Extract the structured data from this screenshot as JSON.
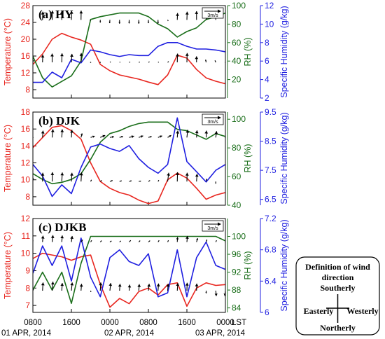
{
  "chart_data": [
    {
      "type": "line",
      "panel_label": "(a) HY",
      "left_axis": {
        "label": "Temperature (°C)",
        "ylim": [
          6,
          28
        ],
        "ticks": [
          8,
          12,
          16,
          20,
          24,
          28
        ],
        "color": "#e8261f"
      },
      "mid_axis": {
        "label": "RH (%)",
        "ylim": [
          0,
          100
        ],
        "ticks": [
          20,
          40,
          60,
          80,
          100
        ],
        "color": "#1a6e1a"
      },
      "right_axis": {
        "label": "Specific Humidity (g/kg)",
        "ylim": [
          2,
          12
        ],
        "ticks": [
          2,
          4,
          6,
          8,
          10,
          12
        ],
        "color": "#1f1fe0"
      },
      "wind_key_label": "3m/s",
      "series": [
        {
          "axis": "left",
          "color": "#e8261f",
          "x": [
            0,
            2,
            4,
            6,
            8,
            10,
            12,
            14,
            16,
            18,
            20,
            22,
            24,
            26,
            28,
            30,
            32,
            34,
            36,
            38,
            40
          ],
          "values": [
            14,
            16.5,
            20,
            21.4,
            20.5,
            19.8,
            18.8,
            14,
            12.5,
            11.5,
            11,
            10.5,
            9.8,
            9.2,
            11.5,
            16.2,
            15.5,
            12.8,
            10.8,
            10,
            9.4
          ]
        },
        {
          "axis": "mid",
          "color": "#1a6e1a",
          "x": [
            0,
            2,
            4,
            6,
            8,
            10,
            12,
            14,
            16,
            18,
            20,
            22,
            24,
            26,
            28,
            30,
            32,
            34,
            36,
            38,
            40
          ],
          "values": [
            45,
            22,
            12,
            18,
            24,
            40,
            85,
            88,
            90,
            92,
            92,
            92,
            88,
            80,
            75,
            66,
            72,
            76,
            85,
            88,
            92
          ]
        },
        {
          "axis": "right",
          "color": "#1f1fe0",
          "x": [
            0,
            2,
            4,
            6,
            8,
            10,
            12,
            14,
            16,
            18,
            20,
            22,
            24,
            26,
            28,
            30,
            32,
            34,
            36,
            38,
            40
          ],
          "values": [
            3.7,
            3.7,
            4.8,
            4.2,
            6.2,
            5.8,
            7.2,
            7,
            6.7,
            6.5,
            6.7,
            6.6,
            6.6,
            7.6,
            8,
            8,
            7.6,
            7.3,
            7.3,
            7.2,
            7
          ]
        }
      ],
      "wind_rows": [
        {
          "level": 24.6,
          "u": [
            0,
            0.1,
            0.1,
            0,
            0.1,
            0.05,
            -0.2,
            0,
            -0.1,
            0,
            0,
            0,
            0,
            0,
            0.2,
            0.1,
            0.1,
            0,
            0.1,
            0,
            0.1
          ],
          "v": [
            0,
            3,
            3.4,
            3.2,
            3.3,
            3.4,
            -0.3,
            -1,
            -1.2,
            -1.4,
            -1.3,
            -1.4,
            -1.2,
            -1.3,
            -0.4,
            2.5,
            3,
            3.2,
            3.1,
            2.8,
            -0.5
          ]
        },
        {
          "level": 14.5,
          "u": [
            0.2,
            0.1,
            0,
            0.1,
            0.2,
            0.1,
            0.1,
            0.2,
            0.3,
            0.3,
            0.4,
            0.4,
            0.4,
            0.3,
            0.4,
            0.1,
            0.1,
            0,
            -0.2,
            -0.3,
            0
          ],
          "v": [
            0.8,
            2.8,
            3.2,
            3.3,
            3.1,
            3.4,
            -0.2,
            -0.1,
            0.2,
            0.1,
            0.1,
            0.1,
            0.2,
            0.1,
            0.3,
            3.2,
            3.4,
            2.2,
            1,
            0.7,
            0
          ]
        }
      ]
    },
    {
      "type": "line",
      "panel_label": "(b) DJK",
      "left_axis": {
        "label": "Temperature (°C)",
        "ylim": [
          7,
          18
        ],
        "ticks": [
          8,
          10,
          12,
          14,
          16,
          18
        ],
        "color": "#e8261f"
      },
      "mid_axis": {
        "label": "RH (%)",
        "ylim": [
          40,
          105
        ],
        "ticks": [
          40,
          60,
          80,
          100
        ],
        "color": "#1a6e1a"
      },
      "right_axis": {
        "label": "Specific Humidity (g/kg)",
        "ylim": [
          6.3,
          9.5
        ],
        "ticks": [
          6.5,
          7.5,
          8.5,
          9.5
        ],
        "color": "#1f1fe0"
      },
      "wind_key_label": "3m/s",
      "series": [
        {
          "axis": "left",
          "color": "#e8261f",
          "x": [
            0,
            2,
            4,
            6,
            8,
            10,
            12,
            14,
            16,
            18,
            20,
            22,
            24,
            26,
            28,
            30,
            32,
            34,
            36,
            38,
            40
          ],
          "values": [
            13.8,
            15,
            16.2,
            16.4,
            15.8,
            14.8,
            12,
            9.8,
            9,
            8.5,
            8.2,
            7.6,
            7.2,
            7.5,
            10,
            10.8,
            10.2,
            9,
            7.7,
            8.2,
            8.5
          ]
        },
        {
          "axis": "mid",
          "color": "#1a6e1a",
          "x": [
            0,
            2,
            4,
            6,
            8,
            10,
            12,
            14,
            16,
            18,
            20,
            22,
            24,
            26,
            28,
            30,
            32,
            34,
            36,
            38,
            40
          ],
          "values": [
            62,
            58,
            55,
            56,
            58,
            62,
            72,
            84,
            90,
            92,
            95,
            97,
            98,
            98,
            98,
            93,
            92,
            89,
            86,
            90,
            88
          ]
        },
        {
          "axis": "right",
          "color": "#1f1fe0",
          "x": [
            0,
            2,
            4,
            6,
            8,
            10,
            12,
            14,
            16,
            18,
            20,
            22,
            24,
            26,
            28,
            30,
            32,
            34,
            36,
            38,
            40
          ],
          "values": [
            7.7,
            7.3,
            6.6,
            7,
            6.7,
            7.6,
            8.3,
            8.4,
            8.25,
            8.15,
            8.35,
            7.9,
            7.6,
            7.4,
            7.7,
            9.3,
            7.8,
            7.45,
            7.1,
            7.5,
            7.7
          ]
        }
      ],
      "wind_rows": [
        {
          "level": 15,
          "u": [
            0,
            0.2,
            0.3,
            0.2,
            0.2,
            0.4,
            1.5,
            1.8,
            1.5,
            1.3,
            1.8,
            1.6,
            1.2,
            1.5,
            1.3,
            0.2,
            0.3,
            0.2,
            0.1,
            0.3,
            0.1
          ],
          "v": [
            0,
            2.5,
            3,
            3,
            2.8,
            1.5,
            0.5,
            0.8,
            0.3,
            0.4,
            0.5,
            0.6,
            0.4,
            0.6,
            0.8,
            2.5,
            2.8,
            2.6,
            2.5,
            2.3,
            0
          ]
        },
        {
          "level": 9.8,
          "u": [
            0,
            0.1,
            0.1,
            0.2,
            0.2,
            0.2,
            0.3,
            0.6,
            1,
            0.8,
            0.9,
            0.8,
            0.6,
            0.3,
            0.4,
            0.1,
            0.1,
            0.2,
            0.2,
            0,
            0.1
          ],
          "v": [
            1.5,
            3.2,
            3.4,
            3.3,
            3.2,
            3.3,
            0.6,
            0.4,
            0.4,
            0.3,
            0.3,
            0.2,
            0.4,
            0.5,
            3.2,
            3.4,
            3.2,
            2.8,
            1,
            -0.8,
            -1
          ]
        }
      ]
    },
    {
      "type": "line",
      "panel_label": "(c) DJKB",
      "left_axis": {
        "label": "Temperature (°C)",
        "ylim": [
          6.6,
          12
        ],
        "ticks": [
          7,
          8,
          9,
          10,
          11,
          12
        ],
        "color": "#e8261f"
      },
      "mid_axis": {
        "label": "RH (%)",
        "ylim": [
          83,
          104
        ],
        "ticks": [
          84,
          88,
          92,
          96,
          100
        ],
        "color": "#1a6e1a"
      },
      "right_axis": {
        "label": "Specific Humidity (g/kg)",
        "ylim": [
          6,
          7.2
        ],
        "ticks": [
          6,
          6.4,
          6.8,
          7.2
        ],
        "color": "#1f1fe0"
      },
      "wind_key_label": "3m/s",
      "series": [
        {
          "axis": "left",
          "color": "#e8261f",
          "x": [
            0,
            2,
            4,
            6,
            8,
            10,
            12,
            14,
            16,
            18,
            20,
            22,
            24,
            26,
            28,
            30,
            32,
            34,
            36,
            38,
            40
          ],
          "values": [
            9.7,
            10,
            9.9,
            9.8,
            9.6,
            9.8,
            9.9,
            8.2,
            6.9,
            7.4,
            7.1,
            7.8,
            8,
            7.6,
            8.2,
            8.3,
            6.95,
            8,
            8.3,
            8.15,
            8.2
          ]
        },
        {
          "axis": "mid",
          "color": "#1a6e1a",
          "x": [
            0,
            2,
            4,
            6,
            8,
            10,
            12,
            14,
            16,
            18,
            20,
            22,
            24,
            26,
            28,
            30,
            32,
            34,
            36,
            38,
            40
          ],
          "values": [
            88,
            92,
            88,
            92,
            85,
            94,
            100,
            100,
            100,
            100,
            100,
            100,
            100,
            100,
            100,
            100,
            100,
            100,
            100,
            100,
            99
          ]
        },
        {
          "axis": "right",
          "color": "#1f1fe0",
          "x": [
            0,
            2,
            4,
            6,
            8,
            10,
            12,
            14,
            16,
            18,
            20,
            22,
            24,
            26,
            28,
            30,
            32,
            34,
            36,
            38,
            40
          ],
          "values": [
            6.5,
            6.85,
            6.6,
            6.85,
            6.4,
            6.95,
            6.45,
            6.2,
            6.7,
            6.8,
            6.65,
            6.6,
            6.75,
            6.2,
            6.25,
            6.8,
            6.2,
            6.7,
            6.9,
            6.6,
            6.55
          ]
        }
      ],
      "wind_rows": [
        {
          "level": 10.65,
          "u": [
            0,
            0.2,
            0.3,
            0.2,
            0.3,
            0.6,
            0.4,
            0.5,
            0.6,
            0.5,
            0.6,
            0.5,
            0.6,
            0.4,
            0.3,
            0.1,
            0.2,
            0.4,
            0.3,
            0.3,
            0
          ],
          "v": [
            0.8,
            2.3,
            2.5,
            2.4,
            2.2,
            0.8,
            0.6,
            0.5,
            0.4,
            0.4,
            0.6,
            0.5,
            0.5,
            0.6,
            0.6,
            1.8,
            2.2,
            1.4,
            0.9,
            0.6,
            0
          ]
        },
        {
          "level": 7.85,
          "u": [
            0.2,
            0.2,
            0.3,
            0.2,
            0.3,
            0.2,
            0.1,
            0.2,
            0.3,
            0.2,
            0.2,
            0.2,
            0.3,
            0.2,
            0.2,
            0.2,
            0.1,
            0.1,
            0,
            0.2,
            -0.2
          ],
          "v": [
            0.5,
            3,
            3.3,
            2.8,
            3,
            2.5,
            -0.5,
            3,
            2.8,
            2.5,
            2.2,
            2.4,
            2.5,
            2.6,
            2.5,
            2.8,
            2.9,
            2.6,
            -1,
            -2,
            -2
          ]
        }
      ]
    }
  ],
  "x_axis": {
    "ticks_x": [
      0,
      8,
      16,
      24,
      32,
      40
    ],
    "tick_labels": [
      "0800",
      "1600",
      "0000",
      "0800",
      "1600",
      "0000"
    ],
    "lst_label": "LST",
    "date_labels": [
      {
        "x": 0,
        "text": "01 APR, 2014"
      },
      {
        "x": 20,
        "text": "02 APR, 2014"
      },
      {
        "x": 40,
        "text": "03 APR, 2014"
      }
    ]
  },
  "legend": {
    "title_line1": "Definition of wind",
    "title_line2": "direction",
    "north": "Southerly",
    "south": "Northerly",
    "west": "Easterly",
    "east": "Westerly"
  }
}
